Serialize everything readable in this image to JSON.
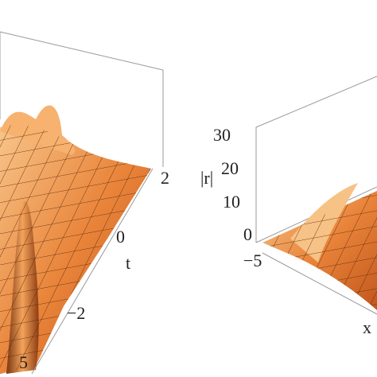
{
  "left_plot": {
    "t_axis": {
      "label": "t",
      "ticks": [
        "2",
        "0",
        "−2"
      ]
    },
    "x_axis": {
      "ticks": [
        "5"
      ]
    }
  },
  "right_plot": {
    "z_axis": {
      "label": "|r|",
      "ticks": [
        "30",
        "20",
        "10",
        "0"
      ]
    },
    "x_axis": {
      "label": "x",
      "ticks": [
        "−5"
      ]
    }
  }
}
